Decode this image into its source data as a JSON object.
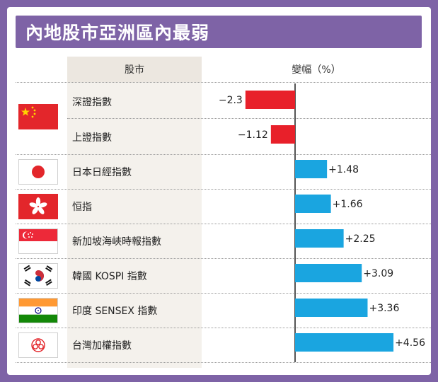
{
  "title": "內地股市亞洲區內最弱",
  "header": {
    "stock_col": "股市",
    "change_col": "變幅（%）"
  },
  "chart_data": {
    "type": "bar",
    "orientation": "horizontal",
    "title": "內地股市亞洲區內最弱",
    "ylabel": "變幅（%）",
    "categories": [
      "深證指數",
      "上證指數",
      "日本日經指數",
      "恒指",
      "新加坡海峽時報指數",
      "韓國 KOSPI 指數",
      "印度 SENSEX 指數",
      "台灣加權指數"
    ],
    "values": [
      -2.3,
      -1.12,
      1.48,
      1.66,
      2.25,
      3.09,
      3.36,
      4.56
    ],
    "value_labels": [
      "−2.3",
      "−1.12",
      "+1.48",
      "+1.66",
      "+2.25",
      "+3.09",
      "+3.36",
      "+4.56"
    ],
    "negative_color": "#e8202a",
    "positive_color": "#1aa5e0",
    "grid": false,
    "legend": "none"
  },
  "flags": [
    {
      "name": "china-flag-icon",
      "rows": [
        0,
        1
      ]
    },
    {
      "name": "japan-flag-icon",
      "rows": [
        2
      ]
    },
    {
      "name": "hong-kong-flag-icon",
      "rows": [
        3
      ]
    },
    {
      "name": "singapore-flag-icon",
      "rows": [
        4
      ]
    },
    {
      "name": "south-korea-flag-icon",
      "rows": [
        5
      ]
    },
    {
      "name": "india-flag-icon",
      "rows": [
        6
      ]
    },
    {
      "name": "taiwan-flag-icon",
      "rows": [
        7
      ]
    }
  ]
}
